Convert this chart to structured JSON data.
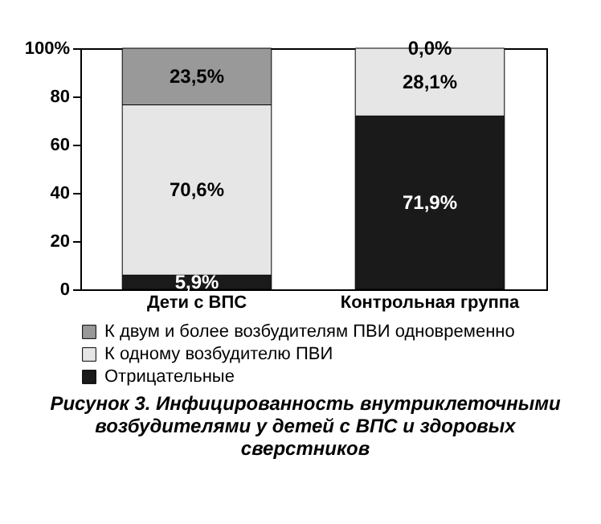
{
  "chart_data": {
    "type": "bar",
    "title": "Рисунок 3. Инфицированность внутриклеточными возбудителями у детей с ВПС и здоровых сверстников",
    "categories": [
      "Дети с ВПС",
      "Контрольная группа"
    ],
    "stacked": true,
    "series": [
      {
        "name": "Отрицательные",
        "color": "#1a1a1a",
        "values": [
          5.9,
          71.9
        ],
        "value_labels": [
          "5,9%",
          "71,9%"
        ]
      },
      {
        "name": "К одному возбудителю ПВИ",
        "color": "#e6e6e6",
        "values": [
          70.6,
          28.1
        ],
        "value_labels": [
          "70,6%",
          "28,1%"
        ]
      },
      {
        "name": "К двум и более возбудителям ПВИ одновременно",
        "color": "#999999",
        "values": [
          23.5,
          0.0
        ],
        "value_labels": [
          "23,5%",
          "0,0%"
        ]
      }
    ],
    "ylim": [
      0,
      100
    ],
    "yticks": [
      0,
      20,
      40,
      60,
      80,
      {
        "value": 100,
        "label": "100%"
      }
    ],
    "legend": "bottom"
  }
}
